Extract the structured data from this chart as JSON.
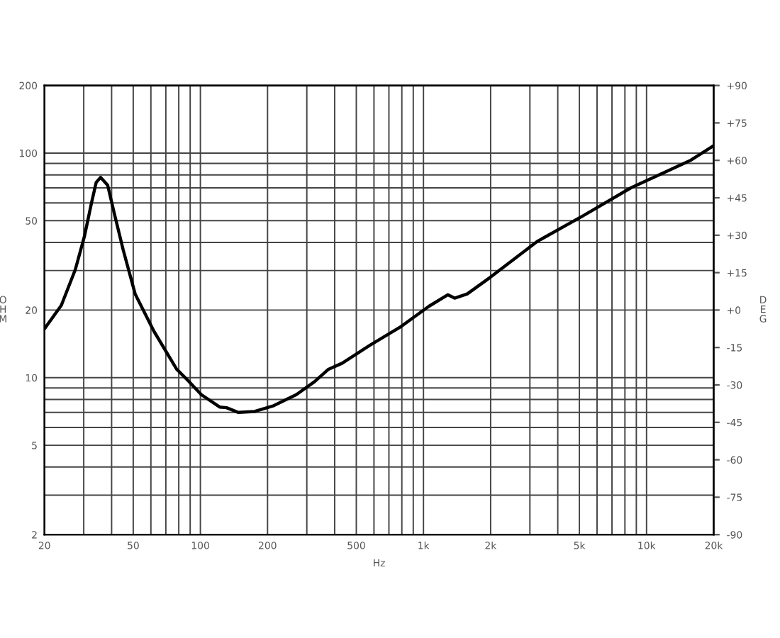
{
  "chart_data": {
    "type": "line",
    "xlabel": "Hz",
    "ylabel": "OHM",
    "y2label": "DEG",
    "log": "xy",
    "grid": true,
    "legend": false,
    "xlim": [
      20,
      20000
    ],
    "ylim": [
      2,
      200
    ],
    "y2lim": [
      -90,
      90
    ],
    "xticks": [
      20,
      {
        "value": 30,
        "label": null
      },
      {
        "value": 40,
        "label": null
      },
      50,
      {
        "value": 60,
        "label": null
      },
      {
        "value": 70,
        "label": null
      },
      {
        "value": 80,
        "label": null
      },
      {
        "value": 90,
        "label": null
      },
      100,
      200,
      {
        "value": 300,
        "label": null
      },
      {
        "value": 400,
        "label": null
      },
      500,
      {
        "value": 600,
        "label": null
      },
      {
        "value": 700,
        "label": null
      },
      {
        "value": 800,
        "label": null
      },
      {
        "value": 900,
        "label": null
      },
      {
        "value": 1000,
        "label": "1k"
      },
      {
        "value": 2000,
        "label": "2k"
      },
      {
        "value": 3000,
        "label": null
      },
      {
        "value": 4000,
        "label": null
      },
      {
        "value": 5000,
        "label": "5k"
      },
      {
        "value": 6000,
        "label": null
      },
      {
        "value": 7000,
        "label": null
      },
      {
        "value": 8000,
        "label": null
      },
      {
        "value": 9000,
        "label": null
      },
      {
        "value": 10000,
        "label": "10k"
      },
      {
        "value": 20000,
        "label": "20k"
      }
    ],
    "yticks": [
      2,
      {
        "value": 3,
        "label": null
      },
      {
        "value": 4,
        "label": null
      },
      5,
      {
        "value": 6,
        "label": null
      },
      {
        "value": 7,
        "label": null
      },
      {
        "value": 8,
        "label": null
      },
      {
        "value": 9,
        "label": null
      },
      10,
      20,
      {
        "value": 30,
        "label": null
      },
      {
        "value": 40,
        "label": null
      },
      50,
      {
        "value": 60,
        "label": null
      },
      {
        "value": 70,
        "label": null
      },
      {
        "value": 80,
        "label": null
      },
      {
        "value": 90,
        "label": null
      },
      100,
      200
    ],
    "y2ticks": [
      -90,
      -75,
      -60,
      -45,
      -30,
      -15,
      {
        "value": 0,
        "label": "+0"
      },
      {
        "value": 15,
        "label": "+15"
      },
      {
        "value": 30,
        "label": "+30"
      },
      {
        "value": 45,
        "label": "+45"
      },
      {
        "value": 60,
        "label": "+60"
      },
      {
        "value": 75,
        "label": "+75"
      },
      {
        "value": 90,
        "label": "+90"
      }
    ],
    "series": [
      {
        "color": "#000000",
        "x": [
          20,
          23.8,
          27.5,
          30.2,
          32.5,
          34.1,
          35.7,
          38.4,
          41.1,
          45.1,
          51,
          61.9,
          78.3,
          88.1,
          101,
          122,
          131,
          148,
          175,
          213,
          269,
          325,
          375,
          432,
          573,
          794,
          1059,
          1285,
          1379,
          1571,
          1995,
          3231,
          5245,
          8508,
          15800,
          20000
        ],
        "values": [
          16.5,
          21,
          30.3,
          42.5,
          60,
          74,
          78,
          72,
          54,
          37,
          23.6,
          16.1,
          10.9,
          9.7,
          8.4,
          7.4,
          7.35,
          7.0,
          7.07,
          7.5,
          8.4,
          9.6,
          10.9,
          11.6,
          13.9,
          16.9,
          20.8,
          23.4,
          22.6,
          23.6,
          28,
          40.4,
          52.9,
          70,
          93,
          108
        ]
      }
    ]
  }
}
